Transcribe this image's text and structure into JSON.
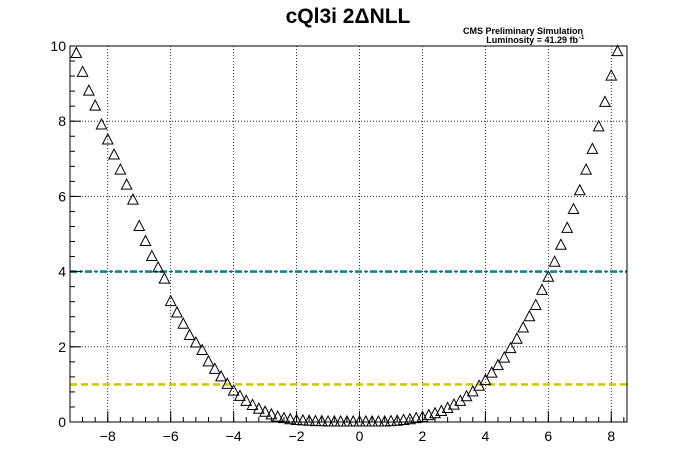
{
  "chart_data": {
    "type": "scatter",
    "title": "cQl3i 2ΔNLL",
    "xlabel": "",
    "ylabel": "",
    "xlim": [
      -9.2,
      8.5
    ],
    "ylim": [
      0,
      10
    ],
    "grid": true,
    "x_ticks": [
      -8,
      -6,
      -4,
      -2,
      0,
      2,
      4,
      6,
      8
    ],
    "x_tick_labels": [
      "−8",
      "−6",
      "−4",
      "−2",
      "0",
      "2",
      "4",
      "6",
      "8"
    ],
    "y_ticks": [
      0,
      2,
      4,
      6,
      8,
      10
    ],
    "y_tick_labels": [
      "0",
      "2",
      "4",
      "6",
      "8",
      "10"
    ],
    "annotations": {
      "line1": "CMS Preliminary Simulation",
      "line2": "Luminosity = 41.29 fb",
      "line2_sup": "-1"
    },
    "reference_lines": [
      {
        "y": 4,
        "color": "#008b8b",
        "style": "dash-dot"
      },
      {
        "y": 1,
        "color": "#cccc00",
        "style": "dashed"
      }
    ],
    "marker": "open-triangle",
    "marker_color": "#000000",
    "series": [
      {
        "x": [
          -9.0,
          -8.8,
          -8.6,
          -8.4,
          -8.2,
          -8.0,
          -7.8,
          -7.6,
          -7.4,
          -7.2,
          -7.0,
          -6.8,
          -6.6,
          -6.4,
          -6.2,
          -6.0,
          -5.8,
          -5.6,
          -5.4,
          -5.2,
          -5.0,
          -4.8,
          -4.6,
          -4.4,
          -4.2,
          -4.0,
          -3.8,
          -3.6,
          -3.4,
          -3.2,
          -3.0,
          -2.8,
          -2.6,
          -2.4,
          -2.2,
          -2.0,
          -1.8,
          -1.6,
          -1.4,
          -1.2,
          -1.0,
          -0.8,
          -0.6,
          -0.4,
          -0.2,
          0.0,
          0.2,
          0.4,
          0.6,
          0.8,
          1.0,
          1.2,
          1.4,
          1.6,
          1.8,
          2.0,
          2.2,
          2.4,
          2.6,
          2.8,
          3.0,
          3.2,
          3.4,
          3.6,
          3.8,
          4.0,
          4.2,
          4.4,
          4.6,
          4.8,
          5.0,
          5.2,
          5.4,
          5.6,
          5.8,
          6.0,
          6.2,
          6.4,
          6.6,
          6.8,
          7.0,
          7.2,
          7.4,
          7.6,
          7.8,
          8.0,
          8.2
        ],
        "y": [
          9.8,
          9.3,
          8.8,
          8.4,
          7.9,
          7.5,
          7.1,
          6.7,
          6.3,
          5.9,
          5.2,
          4.8,
          4.4,
          4.1,
          3.8,
          3.2,
          2.9,
          2.6,
          2.3,
          2.1,
          1.9,
          1.6,
          1.4,
          1.2,
          1.0,
          0.82,
          0.68,
          0.55,
          0.44,
          0.34,
          0.26,
          0.19,
          0.13,
          0.09,
          0.06,
          0.04,
          0.03,
          0.02,
          0.01,
          0.01,
          0.0,
          0.0,
          0.0,
          0.0,
          0.0,
          0.0,
          0.0,
          0.0,
          0.0,
          0.0,
          0.01,
          0.02,
          0.04,
          0.06,
          0.09,
          0.12,
          0.17,
          0.22,
          0.28,
          0.36,
          0.45,
          0.55,
          0.67,
          0.8,
          0.95,
          1.1,
          1.3,
          1.5,
          1.7,
          1.95,
          2.2,
          2.5,
          2.8,
          3.1,
          3.5,
          3.85,
          4.25,
          4.7,
          5.15,
          5.65,
          6.15,
          6.7,
          7.25,
          7.85,
          8.5,
          9.2,
          9.85
        ]
      }
    ]
  }
}
